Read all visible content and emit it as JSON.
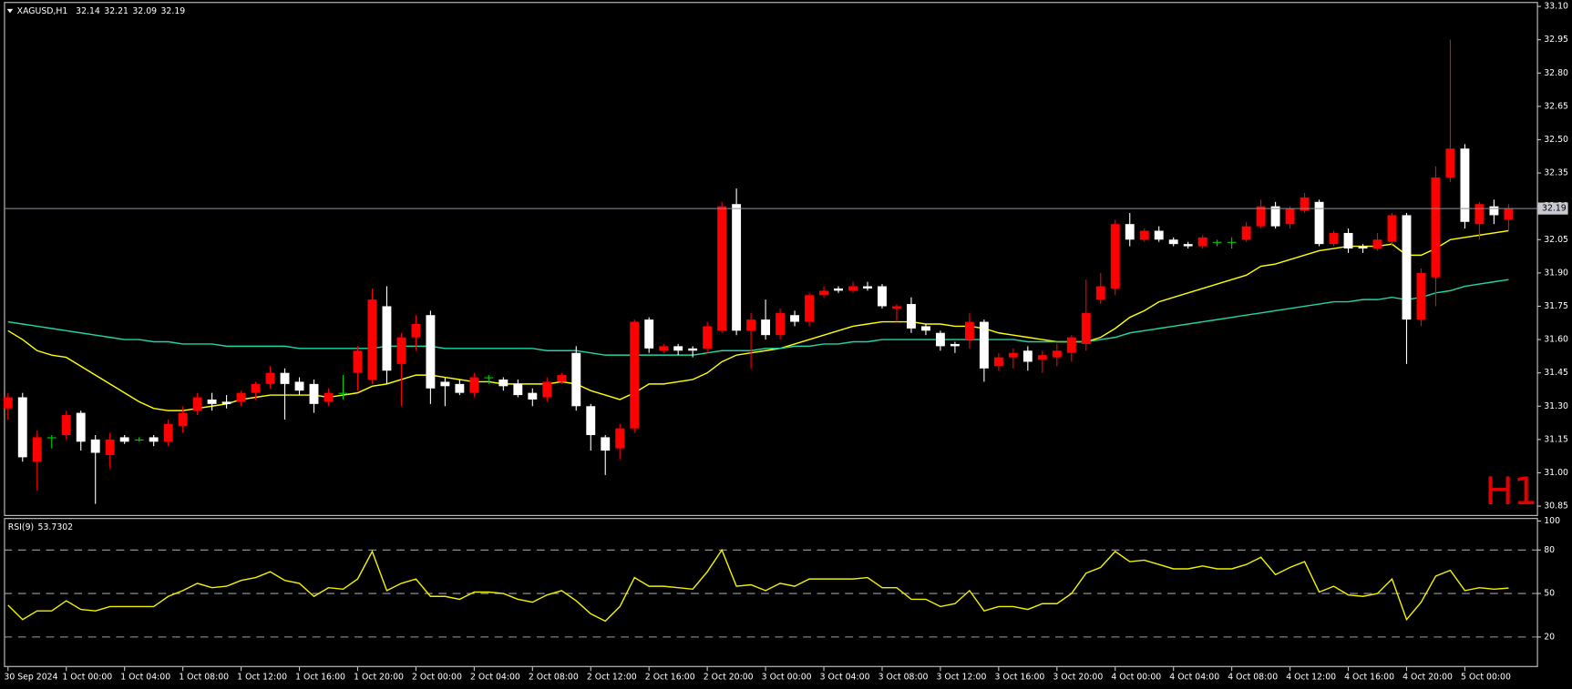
{
  "chart_data": [
    {
      "type": "candlestick",
      "title": "XAGUSD,H1",
      "annotation": "H1",
      "categories": [
        "30 Sep 2024",
        null,
        null,
        null,
        "1 Oct 00:00",
        null,
        null,
        null,
        "1 Oct 04:00",
        null,
        null,
        null,
        "1 Oct 08:00",
        null,
        null,
        null,
        "1 Oct 12:00",
        null,
        null,
        null,
        "1 Oct 16:00",
        null,
        null,
        null,
        "1 Oct 20:00",
        null,
        null,
        null,
        "2 Oct 00:00",
        null,
        null,
        null,
        "2 Oct 04:00",
        null,
        null,
        null,
        "2 Oct 08:00",
        null,
        null,
        null,
        "2 Oct 12:00",
        null,
        null,
        null,
        "2 Oct 16:00",
        null,
        null,
        null,
        "2 Oct 20:00",
        null,
        null,
        null,
        "3 Oct 00:00",
        null,
        null,
        null,
        "3 Oct 04:00",
        null,
        null,
        null,
        "3 Oct 08:00",
        null,
        null,
        null,
        "3 Oct 12:00",
        null,
        null,
        null,
        "3 Oct 16:00",
        null,
        null,
        null,
        "3 Oct 20:00",
        null,
        null,
        null,
        "4 Oct 00:00",
        null,
        null,
        null,
        "4 Oct 04:00",
        null,
        null,
        null,
        "4 Oct 08:00",
        null,
        null,
        null,
        "4 Oct 12:00",
        null,
        null,
        null,
        "4 Oct 16:00",
        null,
        null,
        null,
        "4 Oct 20:00",
        null,
        null,
        null,
        "5 Oct 00:00",
        null,
        null,
        null
      ],
      "open": [
        31.29,
        31.34,
        31.05,
        31.16,
        31.17,
        31.27,
        31.15,
        31.08,
        31.16,
        31.15,
        31.16,
        31.14,
        31.21,
        31.28,
        31.33,
        31.32,
        31.32,
        31.36,
        31.4,
        31.45,
        31.41,
        31.4,
        31.32,
        31.36,
        31.45,
        31.42,
        31.75,
        31.49,
        31.61,
        31.71,
        31.41,
        31.4,
        31.36,
        31.43,
        31.42,
        31.4,
        31.36,
        31.34,
        31.41,
        31.54,
        31.3,
        31.16,
        31.11,
        31.2,
        31.69,
        31.55,
        31.57,
        31.56,
        31.56,
        31.64,
        32.21,
        31.64,
        31.69,
        31.62,
        31.71,
        31.68,
        31.8,
        31.83,
        31.82,
        31.84,
        31.84,
        31.74,
        31.76,
        31.66,
        31.63,
        31.58,
        31.6,
        31.68,
        31.48,
        31.52,
        31.55,
        31.51,
        31.52,
        31.54,
        31.58,
        31.78,
        31.83,
        32.12,
        32.05,
        32.09,
        32.05,
        32.03,
        32.02,
        32.04,
        32.04,
        32.05,
        32.11,
        32.2,
        32.12,
        32.18,
        32.22,
        32.03,
        32.08,
        32.02,
        32.01,
        32.04,
        32.16,
        31.69,
        31.88,
        32.33,
        32.46,
        32.12,
        32.2,
        32.14
      ],
      "high": [
        31.36,
        31.36,
        31.19,
        31.17,
        31.28,
        31.28,
        31.17,
        31.18,
        31.17,
        31.16,
        31.17,
        31.24,
        31.3,
        31.36,
        31.36,
        31.35,
        31.37,
        31.41,
        31.48,
        31.47,
        31.43,
        31.42,
        31.38,
        31.44,
        31.57,
        31.83,
        31.84,
        31.63,
        31.71,
        31.73,
        31.43,
        31.42,
        31.45,
        31.44,
        31.43,
        31.42,
        31.38,
        31.43,
        31.45,
        31.57,
        31.31,
        31.17,
        31.22,
        31.69,
        31.7,
        31.58,
        31.58,
        31.57,
        31.68,
        32.22,
        32.28,
        31.72,
        31.78,
        31.74,
        31.73,
        31.81,
        31.84,
        31.84,
        31.86,
        31.86,
        31.85,
        31.76,
        31.79,
        31.67,
        31.64,
        31.59,
        31.72,
        31.69,
        31.54,
        31.56,
        31.57,
        31.55,
        31.58,
        31.62,
        31.87,
        31.9,
        32.14,
        32.17,
        32.1,
        32.11,
        32.06,
        32.04,
        32.07,
        32.05,
        32.06,
        32.13,
        32.23,
        32.22,
        32.2,
        32.26,
        32.23,
        32.09,
        32.1,
        32.03,
        32.08,
        32.17,
        32.17,
        31.92,
        32.38,
        32.95,
        32.48,
        32.22,
        32.23,
        32.21
      ],
      "low": [
        31.24,
        31.05,
        30.92,
        31.11,
        31.15,
        31.1,
        30.86,
        31.02,
        31.13,
        31.14,
        31.12,
        31.12,
        31.18,
        31.26,
        31.28,
        31.29,
        31.3,
        31.33,
        31.38,
        31.24,
        31.35,
        31.27,
        31.3,
        31.33,
        31.37,
        31.4,
        31.4,
        31.3,
        31.55,
        31.31,
        31.3,
        31.35,
        31.34,
        31.4,
        31.37,
        31.34,
        31.3,
        31.32,
        31.4,
        31.28,
        31.1,
        30.99,
        31.06,
        31.18,
        31.54,
        31.54,
        31.53,
        31.52,
        31.54,
        31.63,
        31.62,
        31.47,
        31.6,
        31.6,
        31.66,
        31.66,
        31.79,
        31.81,
        31.81,
        31.82,
        31.74,
        31.68,
        31.63,
        31.62,
        31.55,
        31.54,
        31.56,
        31.41,
        31.46,
        31.47,
        31.46,
        31.45,
        31.48,
        31.5,
        31.55,
        31.76,
        31.8,
        32.02,
        32.04,
        32.04,
        32.02,
        32.01,
        32.01,
        32.02,
        32.01,
        32.04,
        32.1,
        32.1,
        32.1,
        32.17,
        32.02,
        32.02,
        31.99,
        31.99,
        32.0,
        32.02,
        31.49,
        31.66,
        31.75,
        32.31,
        32.1,
        32.05,
        32.12,
        32.09
      ],
      "close": [
        31.34,
        31.07,
        31.16,
        31.16,
        31.26,
        31.14,
        31.09,
        31.15,
        31.14,
        31.15,
        31.14,
        31.22,
        31.27,
        31.34,
        31.31,
        31.31,
        31.36,
        31.4,
        31.45,
        31.4,
        31.37,
        31.31,
        31.36,
        31.36,
        31.55,
        31.78,
        31.46,
        31.61,
        31.67,
        31.38,
        31.39,
        31.36,
        31.43,
        31.43,
        31.39,
        31.35,
        31.33,
        31.41,
        31.44,
        31.3,
        31.17,
        31.1,
        31.2,
        31.68,
        31.56,
        31.57,
        31.55,
        31.55,
        31.66,
        32.2,
        31.64,
        31.69,
        31.62,
        31.72,
        31.68,
        31.8,
        31.82,
        31.82,
        31.84,
        31.83,
        31.75,
        31.75,
        31.65,
        31.64,
        31.57,
        31.57,
        31.68,
        31.47,
        31.52,
        31.54,
        31.5,
        31.53,
        31.55,
        31.61,
        31.72,
        31.84,
        32.12,
        32.05,
        32.09,
        32.05,
        32.03,
        32.02,
        32.06,
        32.04,
        32.04,
        32.11,
        32.2,
        32.11,
        32.19,
        32.24,
        32.03,
        32.08,
        32.01,
        32.01,
        32.05,
        32.16,
        31.69,
        31.9,
        32.33,
        32.46,
        32.13,
        32.21,
        32.16,
        32.19
      ],
      "up_color": "#ff0000",
      "down_color": "#ffffff",
      "doji_color": "#00d000",
      "price_line_color": "#8c8ca0",
      "overlays": [
        {
          "color": "#ffff00",
          "values": [
            31.64,
            31.6,
            31.55,
            31.53,
            31.52,
            31.48,
            31.44,
            31.4,
            31.36,
            31.32,
            31.29,
            31.28,
            31.28,
            31.29,
            31.3,
            31.31,
            31.33,
            31.34,
            31.35,
            31.35,
            31.35,
            31.35,
            31.34,
            31.35,
            31.36,
            31.39,
            31.4,
            31.42,
            31.44,
            31.44,
            31.43,
            31.42,
            31.41,
            31.41,
            31.4,
            31.4,
            31.4,
            31.4,
            31.41,
            31.4,
            31.37,
            31.35,
            31.33,
            31.36,
            31.4,
            31.4,
            31.41,
            31.42,
            31.45,
            31.5,
            31.53,
            31.54,
            31.55,
            31.56,
            31.58,
            31.6,
            31.62,
            31.64,
            31.66,
            31.67,
            31.68,
            31.68,
            31.68,
            31.67,
            31.67,
            31.66,
            31.66,
            31.65,
            31.63,
            31.62,
            31.61,
            31.6,
            31.59,
            31.59,
            31.59,
            31.61,
            31.65,
            31.7,
            31.73,
            31.77,
            31.79,
            31.81,
            31.83,
            31.85,
            31.87,
            31.89,
            31.93,
            31.94,
            31.96,
            31.98,
            32.0,
            32.01,
            32.02,
            32.02,
            32.02,
            32.03,
            31.98,
            31.98,
            32.01,
            32.05,
            32.06,
            32.07,
            32.08,
            32.09
          ]
        },
        {
          "color": "#1ed6a6",
          "values": [
            31.68,
            31.67,
            31.66,
            31.65,
            31.64,
            31.63,
            31.62,
            31.61,
            31.6,
            31.6,
            31.59,
            31.59,
            31.58,
            31.58,
            31.58,
            31.57,
            31.57,
            31.57,
            31.57,
            31.57,
            31.56,
            31.56,
            31.56,
            31.56,
            31.56,
            31.56,
            31.57,
            31.57,
            31.57,
            31.57,
            31.56,
            31.56,
            31.56,
            31.56,
            31.56,
            31.56,
            31.56,
            31.55,
            31.55,
            31.55,
            31.54,
            31.53,
            31.53,
            31.53,
            31.53,
            31.53,
            31.53,
            31.53,
            31.54,
            31.55,
            31.55,
            31.55,
            31.56,
            31.56,
            31.57,
            31.57,
            31.58,
            31.58,
            31.59,
            31.59,
            31.6,
            31.6,
            31.6,
            31.6,
            31.6,
            31.6,
            31.6,
            31.6,
            31.6,
            31.6,
            31.59,
            31.59,
            31.59,
            31.59,
            31.59,
            31.6,
            31.61,
            31.63,
            31.64,
            31.65,
            31.66,
            31.67,
            31.68,
            31.69,
            31.7,
            31.71,
            31.72,
            31.73,
            31.74,
            31.75,
            31.76,
            31.77,
            31.77,
            31.78,
            31.78,
            31.79,
            31.78,
            31.79,
            31.81,
            31.82,
            31.84,
            31.85,
            31.86,
            31.87
          ]
        }
      ],
      "ylim": [
        30.81,
        33.12
      ],
      "yticks": [
        {
          "value": 33.1,
          "label": "33.10"
        },
        32.95,
        {
          "value": 32.8,
          "label": "32.80"
        },
        32.65,
        {
          "value": 32.5,
          "label": "32.50"
        },
        32.35,
        {
          "value": 32.2,
          "label": "32.20"
        },
        32.05,
        {
          "value": 31.9,
          "label": "31.90"
        },
        31.75,
        {
          "value": 31.6,
          "label": "31.60"
        },
        31.45,
        {
          "value": 31.3,
          "label": "31.30"
        },
        31.15,
        {
          "value": 31.0,
          "label": "31.00"
        },
        30.85
      ]
    },
    {
      "type": "line",
      "title": "RSI(9)",
      "color": "#f0f000",
      "values": [
        42,
        32,
        38,
        38,
        45,
        39,
        38,
        41,
        41,
        41,
        41,
        48,
        52,
        57,
        54,
        55,
        59,
        61,
        65,
        59,
        57,
        48,
        54,
        53,
        60,
        79,
        52,
        57,
        60,
        48,
        48,
        46,
        51,
        51,
        50,
        46,
        44,
        49,
        52,
        45,
        36,
        31,
        41,
        61,
        55,
        55,
        54,
        53,
        65,
        80,
        55,
        56,
        52,
        57,
        55,
        60,
        60,
        60,
        60,
        61,
        54,
        54,
        46,
        46,
        41,
        43,
        52,
        38,
        41,
        41,
        39,
        43,
        43,
        50,
        64,
        68,
        79,
        72,
        73,
        70,
        67,
        67,
        69,
        67,
        67,
        70,
        75,
        63,
        68,
        72,
        51,
        55,
        49,
        48,
        50,
        60,
        32,
        44,
        62,
        66,
        52,
        54,
        53,
        53.7302
      ],
      "ylim": [
        0,
        100
      ],
      "yticks": [
        100,
        80,
        50,
        20
      ],
      "levels": [
        80,
        50,
        20
      ]
    }
  ]
}
